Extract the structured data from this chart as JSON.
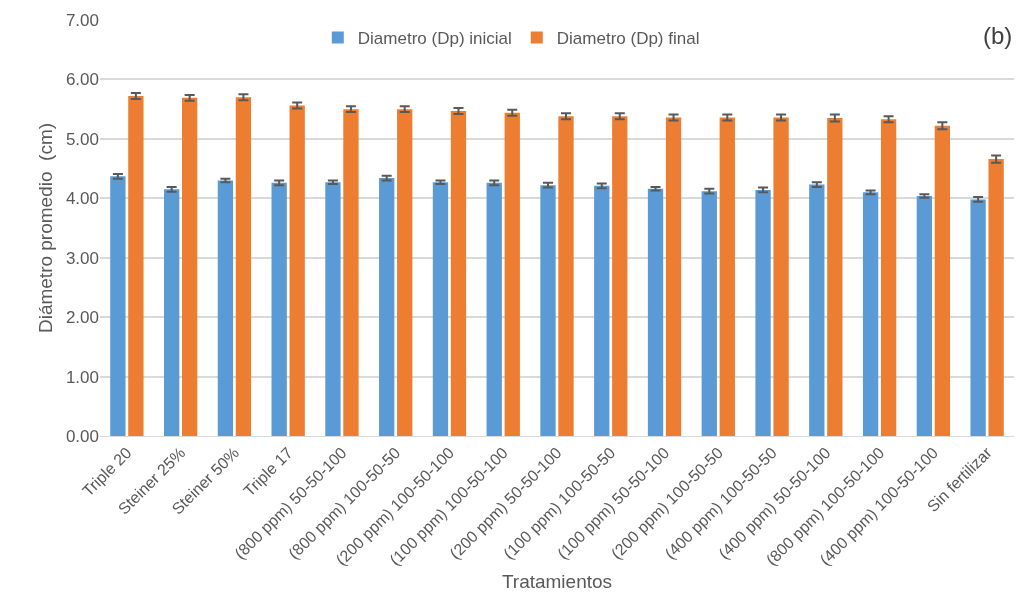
{
  "chart_data": {
    "type": "bar",
    "xlabel": "Tratamientos",
    "ylabel": "Diámetro promedio  (cm)",
    "annotations": [
      "(b)"
    ],
    "categories": [
      "Triple 20",
      "Steiner 25%",
      "Steiner 50%",
      "Triple 17",
      "(800 ppm) 50-50-100",
      "(800 ppm) 100-50-50",
      "(200 ppm) 100-50-100",
      "(100 ppm) 100-50-100",
      "(200 ppm) 50-50-100",
      "(100 ppm) 100-50-50",
      "(100 ppm) 50-50-100",
      "(200 ppm) 100-50-50",
      "(400 ppm) 100-50-50",
      "(400 ppm) 50-50-100",
      "(800 ppm) 100-50-100",
      "(400 ppm) 100-50-100",
      "Sin fertilizar"
    ],
    "series": [
      {
        "name": "Diametro (Dp) inicial",
        "color": "#5b9bd5",
        "values": [
          4.37,
          4.15,
          4.3,
          4.26,
          4.27,
          4.34,
          4.27,
          4.26,
          4.22,
          4.21,
          4.16,
          4.12,
          4.14,
          4.23,
          4.1,
          4.04,
          3.98
        ],
        "errors": [
          0.04,
          0.04,
          0.03,
          0.04,
          0.03,
          0.04,
          0.03,
          0.04,
          0.04,
          0.04,
          0.03,
          0.04,
          0.04,
          0.04,
          0.03,
          0.03,
          0.04
        ]
      },
      {
        "name": "Diametro (Dp) final",
        "color": "#ed7d31",
        "values": [
          5.72,
          5.69,
          5.7,
          5.56,
          5.5,
          5.5,
          5.47,
          5.44,
          5.38,
          5.38,
          5.36,
          5.36,
          5.36,
          5.35,
          5.33,
          5.22,
          4.66
        ],
        "errors": [
          0.05,
          0.05,
          0.05,
          0.05,
          0.05,
          0.05,
          0.05,
          0.05,
          0.05,
          0.05,
          0.05,
          0.05,
          0.05,
          0.06,
          0.05,
          0.06,
          0.06
        ]
      }
    ],
    "ylim": [
      0,
      7
    ],
    "yticks": [
      {
        "value": 0,
        "label": "0.00"
      },
      {
        "value": 1,
        "label": "1.00"
      },
      {
        "value": 2,
        "label": "2.00"
      },
      {
        "value": 3,
        "label": "3.00"
      },
      {
        "value": 4,
        "label": "4.00"
      },
      {
        "value": 5,
        "label": "5.00"
      },
      {
        "value": 6,
        "label": "6.00"
      },
      {
        "value": 7,
        "label": "7.00"
      }
    ],
    "grid": "y",
    "legend": "top"
  }
}
